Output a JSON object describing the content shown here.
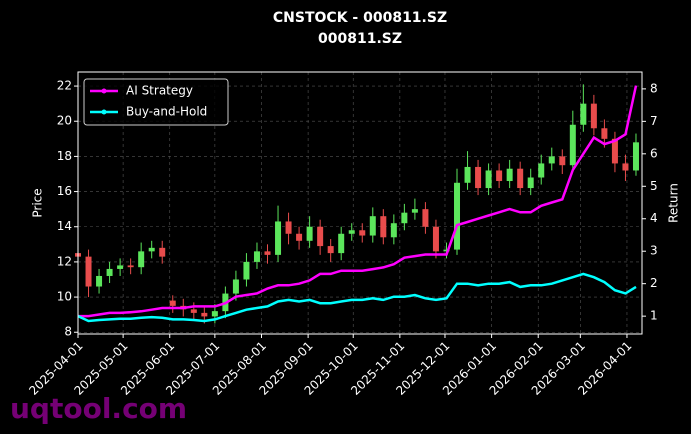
{
  "chart_data": {
    "type": "candlestick",
    "title": "CNSTOCK - 000811.SZ",
    "subtitle": "000811.SZ",
    "ylabel": "Price",
    "y2label": "Return",
    "watermark": "uqtool.com",
    "up_color": "#5ce65c",
    "down_color": "#e84c4c",
    "grid": true,
    "legend": "upper left",
    "x": [
      "2025-04-01",
      "2025-04-08",
      "2025-04-15",
      "2025-04-22",
      "2025-04-29",
      "2025-05-06",
      "2025-05-13",
      "2025-05-20",
      "2025-05-27",
      "2025-06-03",
      "2025-06-10",
      "2025-06-17",
      "2025-06-24",
      "2025-07-01",
      "2025-07-08",
      "2025-07-15",
      "2025-07-22",
      "2025-07-29",
      "2025-08-05",
      "2025-08-12",
      "2025-08-19",
      "2025-08-26",
      "2025-09-02",
      "2025-09-09",
      "2025-09-16",
      "2025-09-23",
      "2025-09-30",
      "2025-10-07",
      "2025-10-14",
      "2025-10-21",
      "2025-10-28",
      "2025-11-04",
      "2025-11-11",
      "2025-11-18",
      "2025-11-25",
      "2025-12-02",
      "2025-12-09",
      "2025-12-16",
      "2025-12-23",
      "2025-12-30",
      "2026-01-06",
      "2026-01-13",
      "2026-01-20",
      "2026-01-27",
      "2026-02-03",
      "2026-02-10",
      "2026-02-17",
      "2026-02-24",
      "2026-03-03",
      "2026-03-10",
      "2026-03-17",
      "2026-03-24",
      "2026-03-31",
      "2026-04-07"
    ],
    "open": [
      12.5,
      12.3,
      10.6,
      11.2,
      11.6,
      11.8,
      11.7,
      12.6,
      12.8,
      9.8,
      9.5,
      9.3,
      9.1,
      8.9,
      9.2,
      10.2,
      11.0,
      12.0,
      12.6,
      12.4,
      14.3,
      13.6,
      13.2,
      14.0,
      12.9,
      12.5,
      13.6,
      13.8,
      13.5,
      14.6,
      13.4,
      14.2,
      14.8,
      15.0,
      14.0,
      12.6,
      12.7,
      16.5,
      17.4,
      16.2,
      17.2,
      16.6,
      17.3,
      16.2,
      16.8,
      17.6,
      18.0,
      17.5,
      19.8,
      21.0,
      19.6,
      19.0,
      17.6,
      17.2
    ],
    "high": [
      12.9,
      12.7,
      11.6,
      12.0,
      12.2,
      12.2,
      13.1,
      13.2,
      13.2,
      10.1,
      9.9,
      9.7,
      9.5,
      9.6,
      10.6,
      11.5,
      12.5,
      13.1,
      13.0,
      15.2,
      14.8,
      14.0,
      14.6,
      14.4,
      13.3,
      14.0,
      14.2,
      14.2,
      15.1,
      15.0,
      14.7,
      15.3,
      15.6,
      15.4,
      14.4,
      13.1,
      17.3,
      18.3,
      17.8,
      17.6,
      17.6,
      17.8,
      17.7,
      17.3,
      18.1,
      18.5,
      18.4,
      20.6,
      22.1,
      21.5,
      20.1,
      19.4,
      18.1,
      19.3
    ],
    "low": [
      11.9,
      10.0,
      10.2,
      10.8,
      11.2,
      11.3,
      11.3,
      12.2,
      11.9,
      9.1,
      8.9,
      8.7,
      8.5,
      8.5,
      8.8,
      9.8,
      10.6,
      11.6,
      11.9,
      12.0,
      13.0,
      12.7,
      12.8,
      12.4,
      12.0,
      12.1,
      13.2,
      13.1,
      13.1,
      13.0,
      13.0,
      13.8,
      14.4,
      13.6,
      12.2,
      12.2,
      12.4,
      16.1,
      15.8,
      15.8,
      16.2,
      16.2,
      15.8,
      15.8,
      16.4,
      17.2,
      17.0,
      17.2,
      19.4,
      19.2,
      18.5,
      17.1,
      16.6,
      16.9
    ],
    "close": [
      12.3,
      10.6,
      11.2,
      11.6,
      11.8,
      11.7,
      12.6,
      12.8,
      12.3,
      9.5,
      9.3,
      9.1,
      8.9,
      9.2,
      10.2,
      11.0,
      12.0,
      12.6,
      12.4,
      14.3,
      13.6,
      13.2,
      14.0,
      12.9,
      12.5,
      13.6,
      13.8,
      13.5,
      14.6,
      13.4,
      14.2,
      14.8,
      15.0,
      14.0,
      12.6,
      12.7,
      16.5,
      17.4,
      16.2,
      17.2,
      16.6,
      17.3,
      16.2,
      16.8,
      17.6,
      18.0,
      17.5,
      19.8,
      21.0,
      19.6,
      19.0,
      17.6,
      17.2,
      18.8
    ],
    "series": [
      {
        "name": "AI Strategy",
        "color": "#ff00ff",
        "axis": "y2",
        "values": [
          1.0,
          1.0,
          1.05,
          1.1,
          1.1,
          1.12,
          1.15,
          1.2,
          1.25,
          1.25,
          1.25,
          1.3,
          1.3,
          1.3,
          1.4,
          1.6,
          1.65,
          1.7,
          1.85,
          1.95,
          1.95,
          2.0,
          2.1,
          2.3,
          2.3,
          2.4,
          2.4,
          2.4,
          2.45,
          2.5,
          2.6,
          2.8,
          2.85,
          2.9,
          2.9,
          2.9,
          3.8,
          3.9,
          4.0,
          4.1,
          4.2,
          4.3,
          4.2,
          4.2,
          4.4,
          4.5,
          4.6,
          5.5,
          6.0,
          6.5,
          6.3,
          6.4,
          6.6,
          8.1
        ]
      },
      {
        "name": "Buy-and-Hold",
        "color": "#00ffff",
        "axis": "y2",
        "values": [
          1.0,
          0.85,
          0.88,
          0.9,
          0.92,
          0.92,
          0.95,
          0.97,
          0.95,
          0.9,
          0.9,
          0.88,
          0.85,
          0.9,
          1.0,
          1.1,
          1.2,
          1.25,
          1.3,
          1.45,
          1.5,
          1.45,
          1.5,
          1.4,
          1.4,
          1.45,
          1.5,
          1.5,
          1.55,
          1.5,
          1.6,
          1.6,
          1.65,
          1.55,
          1.5,
          1.55,
          2.0,
          2.0,
          1.95,
          2.0,
          2.0,
          2.05,
          1.9,
          1.95,
          1.95,
          2.0,
          2.1,
          2.2,
          2.3,
          2.2,
          2.05,
          1.8,
          1.7,
          1.9
        ]
      }
    ],
    "xlim": [
      "2025-04-01",
      "2026-04-11"
    ],
    "xticks": [
      "2025-04-01",
      "2025-05-01",
      "2025-06-01",
      "2025-07-01",
      "2025-08-01",
      "2025-09-01",
      "2025-10-01",
      "2025-11-01",
      "2025-12-01",
      "2026-01-01",
      "2026-02-01",
      "2026-03-01",
      "2026-04-01"
    ],
    "ylim": [
      7.9,
      22.8
    ],
    "yticks": [
      8,
      10,
      12,
      14,
      16,
      18,
      20,
      22
    ],
    "y2lim": [
      0.45,
      8.52
    ],
    "y2ticks": [
      1,
      2,
      3,
      4,
      5,
      6,
      7,
      8
    ]
  }
}
